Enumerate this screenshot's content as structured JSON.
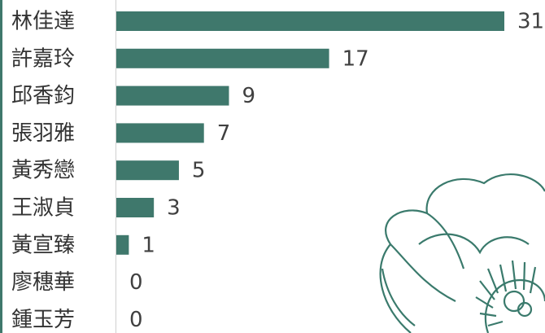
{
  "chart_data": {
    "type": "bar",
    "orientation": "horizontal",
    "categories": [
      "林佳達",
      "許嘉玲",
      "邱香鈞",
      "張羽雅",
      "黃秀戀",
      "王淑貞",
      "黃宣臻",
      "廖穗華",
      "鍾玉芳"
    ],
    "values": [
      31,
      17,
      9,
      7,
      5,
      3,
      1,
      0,
      0
    ],
    "color": "#3f786c"
  }
}
